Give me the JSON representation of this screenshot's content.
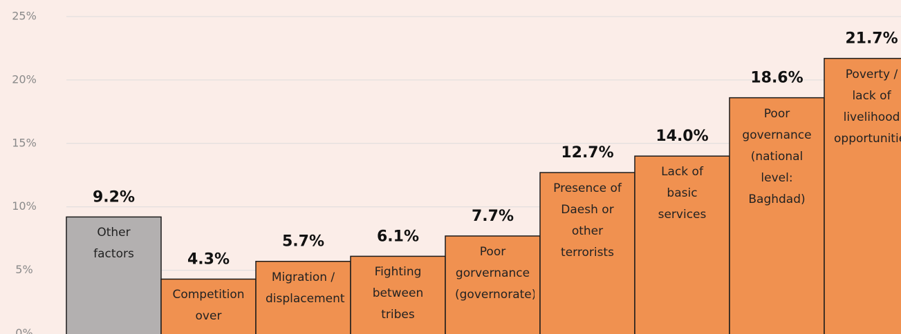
{
  "chart_data": {
    "type": "bar",
    "categories": [
      "Other factors",
      "Competition over resources",
      "Migration / displacement",
      "Fighting between tribes",
      "Poor gorvernance (governorate)",
      "Presence of Daesh or other terrorists",
      "Lack of basic services",
      "Poor governance (national level: Baghdad)",
      "Poverty / lack of livelihood opportunities"
    ],
    "values": [
      9.2,
      4.3,
      5.7,
      6.1,
      7.7,
      12.7,
      14.0,
      18.6,
      21.7
    ],
    "value_labels": [
      "9.2%",
      "4.3%",
      "5.7%",
      "6.1%",
      "7.7%",
      "12.7%",
      "14.0%",
      "18.6%",
      "21.7%"
    ],
    "colors": [
      "#b3b0b0",
      "#f09150",
      "#f09150",
      "#f09150",
      "#f09150",
      "#f09150",
      "#f09150",
      "#f09150",
      "#f09150"
    ],
    "ylim": [
      0,
      25
    ],
    "yticks": [
      {
        "value": 0,
        "label": "0%"
      },
      {
        "value": 5,
        "label": "5%"
      },
      {
        "value": 10,
        "label": "10%"
      },
      {
        "value": 15,
        "label": "15%"
      },
      {
        "value": 20,
        "label": "20%"
      },
      {
        "value": 25,
        "label": "25%"
      }
    ],
    "grid": true
  }
}
